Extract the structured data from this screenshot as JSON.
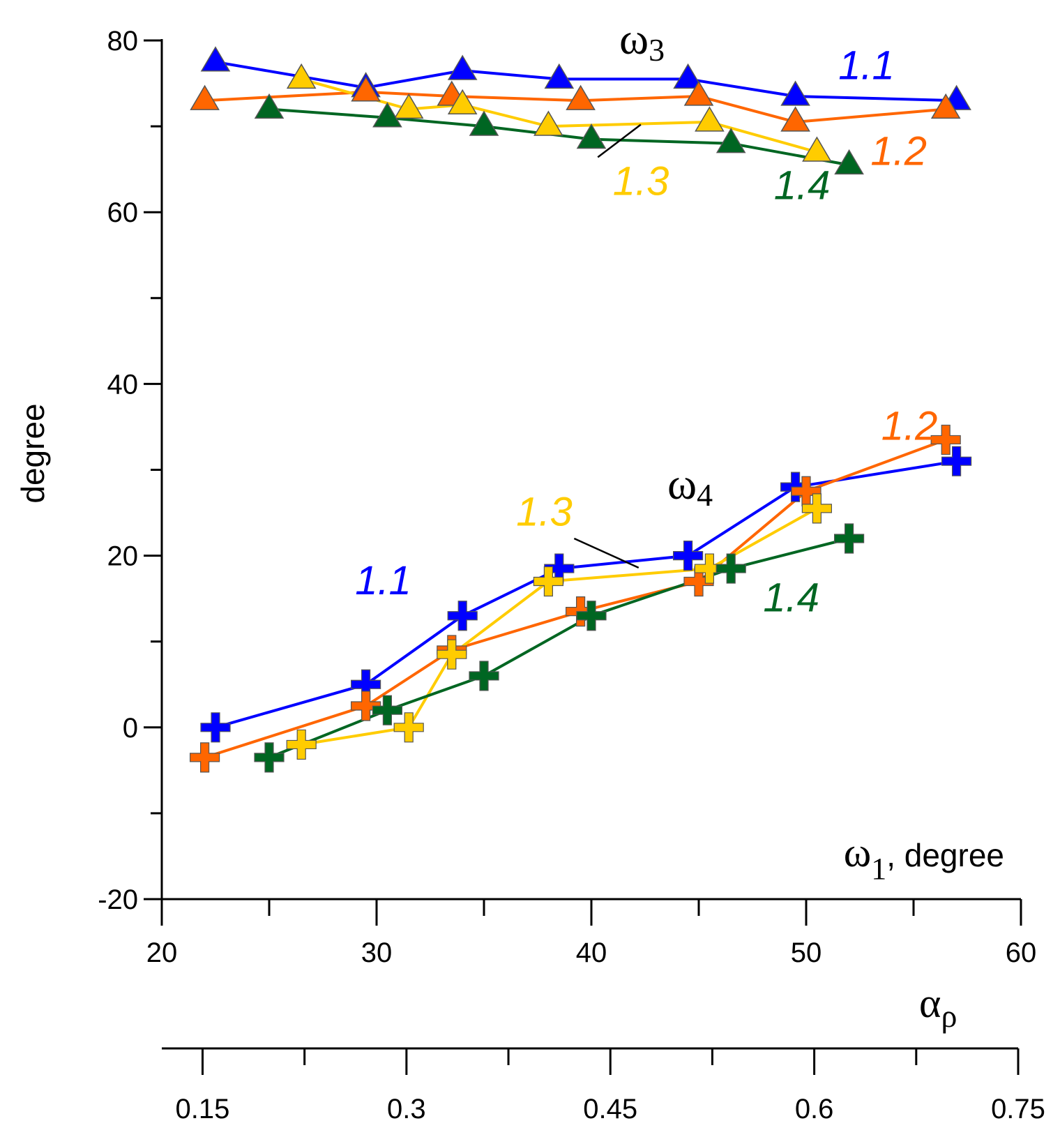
{
  "chart_data": {
    "type": "line",
    "ylabel": "degree",
    "ylim": [
      -20,
      80
    ],
    "yticks_major": [
      -20,
      0,
      20,
      40,
      60,
      80
    ],
    "xlim": [
      20,
      60
    ],
    "xticks_major": [
      20,
      30,
      40,
      50,
      60
    ],
    "x2ticks_major": [
      "0.15",
      "0.3",
      "0.45",
      "0.6",
      "0.75"
    ],
    "x2lim": [
      0.12,
      0.75
    ],
    "annotations": {
      "omega3_symbol": "ω",
      "omega3_sub": "3",
      "omega4_symbol": "ω",
      "omega4_sub": "4",
      "xtitle_symbol": "ω",
      "xtitle_sub": "1",
      "xtitle_text": ", degree",
      "x2_symbol": "α",
      "x2_sub": "ρ"
    },
    "colors": {
      "1.1": "#0000ff",
      "1.2": "#ff6600",
      "1.3": "#ffcc00",
      "1.4": "#006622"
    },
    "series": [
      {
        "name": "1.1",
        "group": "omega3",
        "marker": "triangle",
        "x": [
          22.5,
          29.5,
          34,
          38.5,
          44.5,
          49.5,
          57
        ],
        "y": [
          77.5,
          74.5,
          76.5,
          75.5,
          75.5,
          73.5,
          73
        ]
      },
      {
        "name": "1.2",
        "group": "omega3",
        "marker": "triangle",
        "x": [
          22,
          29.5,
          33.5,
          39.5,
          45,
          49.5,
          56.5
        ],
        "y": [
          73,
          74,
          73.5,
          73,
          73.5,
          70.5,
          72
        ]
      },
      {
        "name": "1.3",
        "group": "omega3",
        "marker": "triangle",
        "x": [
          26.5,
          31.5,
          34,
          38,
          45.5,
          50.5
        ],
        "y": [
          75.5,
          72,
          72.5,
          70,
          70.5,
          67
        ]
      },
      {
        "name": "1.4",
        "group": "omega3",
        "marker": "triangle",
        "x": [
          25,
          30.5,
          35,
          40,
          46.5,
          52
        ],
        "y": [
          72,
          71,
          70,
          68.5,
          68,
          65.5
        ]
      },
      {
        "name": "1.1",
        "group": "omega4",
        "marker": "cross",
        "x": [
          22.5,
          29.5,
          34,
          38.5,
          44.5,
          49.5,
          57
        ],
        "y": [
          0,
          5,
          13,
          18.5,
          20,
          28,
          31
        ]
      },
      {
        "name": "1.2",
        "group": "omega4",
        "marker": "cross",
        "x": [
          22,
          29.5,
          33.5,
          39.5,
          45,
          50,
          56.5
        ],
        "y": [
          -3.5,
          2.5,
          9,
          13.5,
          17,
          27.5,
          33.5
        ]
      },
      {
        "name": "1.3",
        "group": "omega4",
        "marker": "cross",
        "x": [
          26.5,
          31.5,
          33.5,
          38,
          45.5,
          50.5
        ],
        "y": [
          -2,
          0,
          8.5,
          17,
          18.5,
          25.5
        ]
      },
      {
        "name": "1.4",
        "group": "omega4",
        "marker": "cross",
        "x": [
          25,
          30.5,
          35,
          40,
          46.5,
          52
        ],
        "y": [
          -3.5,
          2,
          6,
          13,
          18.5,
          22
        ]
      }
    ],
    "series_labels": [
      {
        "text": "1.1",
        "color_key": "1.1",
        "x": 51.5,
        "y": 75.5
      },
      {
        "text": "1.2",
        "color_key": "1.2",
        "x": 53,
        "y": 65.5
      },
      {
        "text": "1.3",
        "color_key": "1.3",
        "x": 41,
        "y": 62
      },
      {
        "text": "1.4",
        "color_key": "1.4",
        "x": 48.5,
        "y": 61.5
      },
      {
        "text": "1.1",
        "color_key": "1.1",
        "x": 29,
        "y": 15.5
      },
      {
        "text": "1.2",
        "color_key": "1.2",
        "x": 53.5,
        "y": 33.5
      },
      {
        "text": "1.3",
        "color_key": "1.3",
        "x": 36.5,
        "y": 23.5
      },
      {
        "text": "1.4",
        "color_key": "1.4",
        "x": 48,
        "y": 13.5
      }
    ]
  }
}
